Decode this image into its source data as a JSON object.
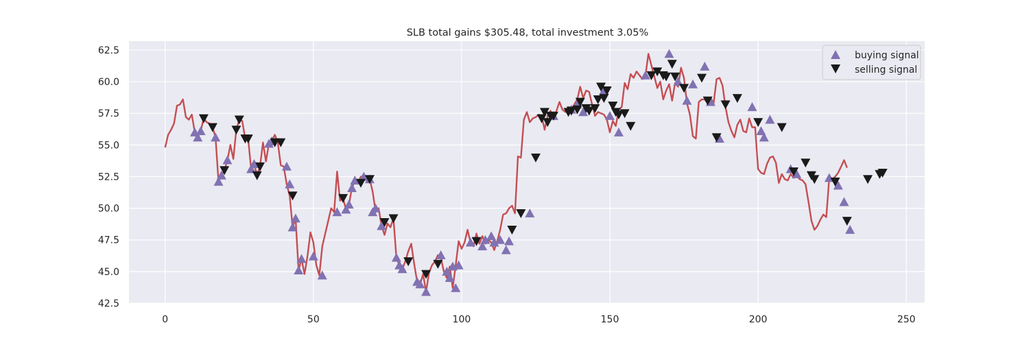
{
  "chart_data": {
    "type": "line",
    "title": "SLB total gains $305.48, total investment 3.05%",
    "xlabel": "",
    "ylabel": "",
    "xlim": [
      -12.2,
      256.2
    ],
    "ylim": [
      42.5,
      63.2
    ],
    "xticks": [
      0,
      50,
      100,
      150,
      200,
      250
    ],
    "yticks": [
      42.5,
      45.0,
      47.5,
      50.0,
      52.5,
      55.0,
      57.5,
      60.0,
      62.5
    ],
    "ytick_labels": [
      "42.5",
      "45.0",
      "47.5",
      "50.0",
      "52.5",
      "55.0",
      "57.5",
      "60.0",
      "62.5"
    ],
    "grid": true,
    "legend_position": "top-right",
    "colors": {
      "plot_background": "#eaeaf2",
      "grid": "#ffffff",
      "price_line": "#c44e52",
      "buy_marker": "#8172b2",
      "sell_marker": "#1a1a1a"
    },
    "price_points": [
      [
        0,
        54.8
      ],
      [
        1,
        55.8
      ],
      [
        2,
        56.2
      ],
      [
        3,
        56.7
      ],
      [
        4,
        58.1
      ],
      [
        5,
        58.2
      ],
      [
        6,
        58.6
      ],
      [
        7,
        57.2
      ],
      [
        8,
        57.0
      ],
      [
        9,
        57.4
      ],
      [
        10,
        56.0
      ],
      [
        11,
        55.6
      ],
      [
        12,
        56.1
      ],
      [
        13,
        57.1
      ],
      [
        14,
        56.8
      ],
      [
        15,
        56.7
      ],
      [
        16,
        56.4
      ],
      [
        17,
        55.6
      ],
      [
        18,
        52.1
      ],
      [
        19,
        52.6
      ],
      [
        20,
        53.0
      ],
      [
        21,
        53.8
      ],
      [
        22,
        55.0
      ],
      [
        23,
        53.9
      ],
      [
        24,
        56.2
      ],
      [
        25,
        57.0
      ],
      [
        26,
        56.9
      ],
      [
        27,
        55.5
      ],
      [
        28,
        55.5
      ],
      [
        29,
        53.1
      ],
      [
        30,
        53.5
      ],
      [
        31,
        52.6
      ],
      [
        32,
        53.3
      ],
      [
        33,
        55.2
      ],
      [
        34,
        53.7
      ],
      [
        35,
        55.1
      ],
      [
        36,
        55.3
      ],
      [
        37,
        55.8
      ],
      [
        38,
        55.2
      ],
      [
        39,
        53.4
      ],
      [
        40,
        53.3
      ],
      [
        41,
        51.9
      ],
      [
        42,
        51.0
      ],
      [
        43,
        48.5
      ],
      [
        44,
        49.2
      ],
      [
        45,
        45.1
      ],
      [
        46,
        46.0
      ],
      [
        47,
        44.8
      ],
      [
        48,
        46.2
      ],
      [
        49,
        48.1
      ],
      [
        50,
        47.3
      ],
      [
        51,
        45.5
      ],
      [
        52,
        44.7
      ],
      [
        53,
        47.0
      ],
      [
        54,
        48.0
      ],
      [
        55,
        49.0
      ],
      [
        56,
        50.0
      ],
      [
        57,
        49.7
      ],
      [
        58,
        52.9
      ],
      [
        59,
        50.6
      ],
      [
        60,
        50.8
      ],
      [
        61,
        49.9
      ],
      [
        62,
        50.3
      ],
      [
        63,
        51.6
      ],
      [
        64,
        52.2
      ],
      [
        65,
        52.0
      ],
      [
        66,
        52.5
      ],
      [
        67,
        52.2
      ],
      [
        68,
        52.3
      ],
      [
        69,
        52.3
      ],
      [
        70,
        51.3
      ],
      [
        71,
        49.7
      ],
      [
        72,
        50.0
      ],
      [
        73,
        48.6
      ],
      [
        74,
        47.9
      ],
      [
        75,
        48.8
      ],
      [
        76,
        48.5
      ],
      [
        77,
        49.2
      ],
      [
        78,
        46.1
      ],
      [
        79,
        45.5
      ],
      [
        80,
        45.2
      ],
      [
        81,
        45.8
      ],
      [
        82,
        46.6
      ],
      [
        83,
        47.2
      ],
      [
        84,
        45.6
      ],
      [
        85,
        44.2
      ],
      [
        86,
        44.0
      ],
      [
        87,
        44.8
      ],
      [
        88,
        43.4
      ],
      [
        89,
        44.9
      ],
      [
        90,
        45.5
      ],
      [
        91,
        45.8
      ],
      [
        92,
        46.3
      ],
      [
        93,
        46.1
      ],
      [
        94,
        45.0
      ],
      [
        95,
        44.5
      ],
      [
        96,
        45.4
      ],
      [
        97,
        43.7
      ],
      [
        98,
        45.5
      ],
      [
        99,
        47.4
      ],
      [
        100,
        46.8
      ],
      [
        101,
        47.3
      ],
      [
        102,
        48.3
      ],
      [
        103,
        47.3
      ],
      [
        104,
        47.0
      ],
      [
        105,
        48.0
      ],
      [
        106,
        47.2
      ],
      [
        107,
        47.8
      ],
      [
        108,
        47.2
      ],
      [
        109,
        47.5
      ],
      [
        110,
        47.3
      ],
      [
        111,
        46.7
      ],
      [
        112,
        47.4
      ],
      [
        113,
        48.3
      ],
      [
        114,
        49.5
      ],
      [
        115,
        49.6
      ],
      [
        116,
        50.0
      ],
      [
        117,
        50.2
      ],
      [
        118,
        49.6
      ],
      [
        119,
        54.1
      ],
      [
        120,
        54.0
      ],
      [
        121,
        57.0
      ],
      [
        122,
        57.6
      ],
      [
        123,
        56.8
      ],
      [
        124,
        57.1
      ],
      [
        125,
        57.2
      ],
      [
        126,
        57.4
      ],
      [
        127,
        57.3
      ],
      [
        128,
        56.2
      ],
      [
        129,
        57.3
      ],
      [
        130,
        57.7
      ],
      [
        131,
        57.1
      ],
      [
        132,
        57.7
      ],
      [
        133,
        58.4
      ],
      [
        134,
        57.8
      ],
      [
        135,
        57.6
      ],
      [
        136,
        58.0
      ],
      [
        137,
        57.7
      ],
      [
        138,
        58.2
      ],
      [
        139,
        58.6
      ],
      [
        140,
        59.6
      ],
      [
        141,
        58.7
      ],
      [
        142,
        59.3
      ],
      [
        143,
        59.2
      ],
      [
        144,
        58.2
      ],
      [
        145,
        57.3
      ],
      [
        146,
        57.6
      ],
      [
        147,
        57.5
      ],
      [
        148,
        57.4
      ],
      [
        149,
        57.0
      ],
      [
        150,
        56.0
      ],
      [
        151,
        56.9
      ],
      [
        152,
        56.5
      ],
      [
        153,
        57.8
      ],
      [
        154,
        58.0
      ],
      [
        155,
        59.9
      ],
      [
        156,
        59.4
      ],
      [
        157,
        60.6
      ],
      [
        158,
        60.3
      ],
      [
        159,
        60.8
      ],
      [
        160,
        60.5
      ],
      [
        161,
        60.2
      ],
      [
        162,
        60.5
      ],
      [
        163,
        62.2
      ],
      [
        164,
        61.3
      ],
      [
        165,
        60.4
      ],
      [
        166,
        59.5
      ],
      [
        167,
        60.0
      ],
      [
        168,
        58.6
      ],
      [
        169,
        59.3
      ],
      [
        170,
        59.8
      ],
      [
        171,
        58.5
      ],
      [
        172,
        59.9
      ],
      [
        173,
        59.6
      ],
      [
        174,
        61.1
      ],
      [
        175,
        60.3
      ],
      [
        176,
        58.3
      ],
      [
        177,
        57.4
      ],
      [
        178,
        55.7
      ],
      [
        179,
        55.5
      ],
      [
        180,
        58.4
      ],
      [
        181,
        58.6
      ],
      [
        182,
        58.6
      ],
      [
        183,
        58.3
      ],
      [
        184,
        58.7
      ],
      [
        185,
        58.3
      ],
      [
        186,
        60.2
      ],
      [
        187,
        60.3
      ],
      [
        188,
        59.7
      ],
      [
        189,
        58.0
      ],
      [
        190,
        56.8
      ],
      [
        191,
        56.1
      ],
      [
        192,
        55.6
      ],
      [
        193,
        56.6
      ],
      [
        194,
        57.0
      ],
      [
        195,
        56.1
      ],
      [
        196,
        56.0
      ],
      [
        197,
        57.1
      ],
      [
        198,
        56.4
      ],
      [
        199,
        56.4
      ],
      [
        200,
        53.1
      ],
      [
        201,
        52.8
      ],
      [
        202,
        52.7
      ],
      [
        203,
        53.5
      ],
      [
        204,
        54.0
      ],
      [
        205,
        54.1
      ],
      [
        206,
        53.6
      ],
      [
        207,
        52.0
      ],
      [
        208,
        52.7
      ],
      [
        209,
        52.3
      ],
      [
        210,
        52.2
      ],
      [
        211,
        52.7
      ],
      [
        212,
        52.4
      ],
      [
        213,
        52.6
      ],
      [
        214,
        52.3
      ],
      [
        215,
        52.2
      ],
      [
        216,
        51.9
      ],
      [
        217,
        50.5
      ],
      [
        218,
        49.0
      ],
      [
        219,
        48.3
      ],
      [
        220,
        48.6
      ],
      [
        221,
        49.1
      ],
      [
        222,
        49.5
      ],
      [
        223,
        49.3
      ],
      [
        224,
        52.4
      ],
      [
        225,
        52.3
      ],
      [
        226,
        52.5
      ],
      [
        227,
        52.8
      ],
      [
        228,
        53.3
      ],
      [
        229,
        53.8
      ],
      [
        230,
        53.2
      ]
    ],
    "series": [
      {
        "name": "buying signal",
        "points": [
          [
            10,
            56.0
          ],
          [
            11,
            55.6
          ],
          [
            12,
            56.1
          ],
          [
            17,
            55.6
          ],
          [
            18,
            52.1
          ],
          [
            19,
            52.6
          ],
          [
            21,
            53.8
          ],
          [
            29,
            53.1
          ],
          [
            30,
            53.5
          ],
          [
            35,
            55.1
          ],
          [
            36,
            55.3
          ],
          [
            41,
            53.3
          ],
          [
            42,
            51.9
          ],
          [
            43,
            48.5
          ],
          [
            44,
            49.2
          ],
          [
            45,
            45.1
          ],
          [
            46,
            46.0
          ],
          [
            50,
            46.2
          ],
          [
            53,
            44.7
          ],
          [
            58,
            49.7
          ],
          [
            61,
            49.9
          ],
          [
            62,
            50.3
          ],
          [
            63,
            51.6
          ],
          [
            64,
            52.2
          ],
          [
            67,
            52.5
          ],
          [
            69,
            52.3
          ],
          [
            70,
            49.7
          ],
          [
            71,
            50.0
          ],
          [
            73,
            48.6
          ],
          [
            78,
            46.1
          ],
          [
            79,
            45.5
          ],
          [
            80,
            45.2
          ],
          [
            85,
            44.2
          ],
          [
            86,
            44.0
          ],
          [
            88,
            43.4
          ],
          [
            93,
            46.3
          ],
          [
            95,
            45.0
          ],
          [
            96,
            44.5
          ],
          [
            97,
            45.4
          ],
          [
            98,
            43.7
          ],
          [
            99,
            45.5
          ],
          [
            103,
            47.3
          ],
          [
            107,
            47.0
          ],
          [
            108,
            47.5
          ],
          [
            110,
            47.8
          ],
          [
            111,
            47.3
          ],
          [
            113,
            47.5
          ],
          [
            115,
            46.7
          ],
          [
            116,
            47.4
          ],
          [
            123,
            49.6
          ],
          [
            131,
            57.3
          ],
          [
            137,
            57.8
          ],
          [
            139,
            58.2
          ],
          [
            141,
            57.6
          ],
          [
            148,
            59.3
          ],
          [
            150,
            57.3
          ],
          [
            153,
            56.0
          ],
          [
            162,
            60.5
          ],
          [
            170,
            62.2
          ],
          [
            173,
            60.0
          ],
          [
            176,
            58.5
          ],
          [
            178,
            59.8
          ],
          [
            182,
            61.2
          ],
          [
            184,
            58.4
          ],
          [
            187,
            55.5
          ],
          [
            198,
            58.0
          ],
          [
            201,
            56.1
          ],
          [
            202,
            55.6
          ],
          [
            204,
            57.0
          ],
          [
            211,
            53.1
          ],
          [
            213,
            52.7
          ],
          [
            224,
            52.4
          ],
          [
            227,
            51.8
          ],
          [
            229,
            50.5
          ],
          [
            231,
            48.3
          ]
        ]
      },
      {
        "name": "selling signal",
        "points": [
          [
            13,
            57.1
          ],
          [
            16,
            56.4
          ],
          [
            20,
            53.0
          ],
          [
            24,
            56.2
          ],
          [
            25,
            57.0
          ],
          [
            27,
            55.5
          ],
          [
            28,
            55.5
          ],
          [
            31,
            52.6
          ],
          [
            32,
            53.3
          ],
          [
            37,
            55.2
          ],
          [
            39,
            55.2
          ],
          [
            43,
            51.0
          ],
          [
            60,
            50.8
          ],
          [
            66,
            52.0
          ],
          [
            69,
            52.3
          ],
          [
            74,
            48.9
          ],
          [
            77,
            49.2
          ],
          [
            82,
            45.8
          ],
          [
            88,
            44.8
          ],
          [
            92,
            45.6
          ],
          [
            105,
            47.4
          ],
          [
            117,
            48.3
          ],
          [
            120,
            49.6
          ],
          [
            125,
            54.0
          ],
          [
            127,
            57.1
          ],
          [
            128,
            57.6
          ],
          [
            129,
            56.8
          ],
          [
            130,
            57.3
          ],
          [
            131,
            57.3
          ],
          [
            136,
            57.6
          ],
          [
            137,
            57.7
          ],
          [
            139,
            57.8
          ],
          [
            140,
            58.4
          ],
          [
            142,
            57.9
          ],
          [
            143,
            57.7
          ],
          [
            145,
            57.9
          ],
          [
            146,
            58.6
          ],
          [
            147,
            59.6
          ],
          [
            148,
            58.7
          ],
          [
            149,
            59.3
          ],
          [
            151,
            58.1
          ],
          [
            152,
            57.6
          ],
          [
            153,
            57.4
          ],
          [
            155,
            57.5
          ],
          [
            157,
            56.5
          ],
          [
            164,
            60.5
          ],
          [
            166,
            60.8
          ],
          [
            168,
            60.5
          ],
          [
            169,
            60.4
          ],
          [
            171,
            61.4
          ],
          [
            172,
            60.4
          ],
          [
            175,
            59.5
          ],
          [
            181,
            60.3
          ],
          [
            183,
            58.5
          ],
          [
            186,
            55.6
          ],
          [
            189,
            58.2
          ],
          [
            193,
            58.7
          ],
          [
            200,
            56.8
          ],
          [
            208,
            56.4
          ],
          [
            212,
            52.9
          ],
          [
            216,
            53.6
          ],
          [
            218,
            52.6
          ],
          [
            219,
            52.3
          ],
          [
            226,
            52.1
          ],
          [
            230,
            49.0
          ],
          [
            237,
            52.3
          ],
          [
            241,
            52.7
          ],
          [
            242,
            52.8
          ]
        ]
      }
    ]
  }
}
